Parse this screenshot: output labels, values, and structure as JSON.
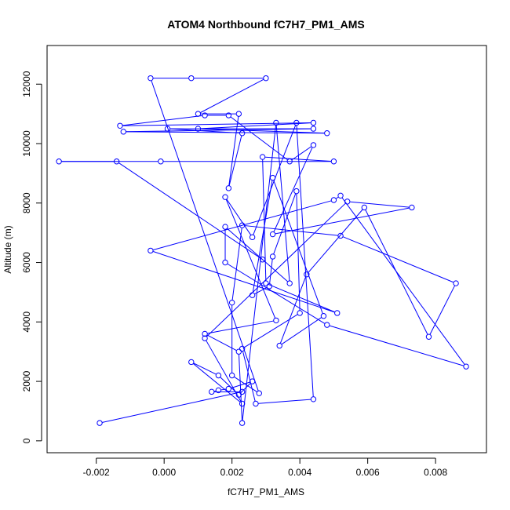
{
  "chart_data": {
    "type": "scatter",
    "title": "ATOM4 Northbound fC7H7_PM1_AMS",
    "xlabel": "fC7H7_PM1_AMS",
    "ylabel": "Altitude (m)",
    "xlim": [
      -0.00345,
      0.0095
    ],
    "ylim": [
      -400,
      13300
    ],
    "x_ticks": [
      -0.002,
      0.0,
      0.002,
      0.004,
      0.006,
      0.008
    ],
    "x_tick_labels": [
      "-0.002",
      "0.000",
      "0.002",
      "0.004",
      "0.006",
      "0.008"
    ],
    "y_ticks": [
      0,
      2000,
      4000,
      6000,
      8000,
      10000,
      12000
    ],
    "y_tick_labels": [
      "0",
      "2000",
      "4000",
      "6000",
      "8000",
      "10000",
      "12000"
    ],
    "grid": false,
    "connected": true,
    "series": [
      {
        "color": "#0000ff",
        "marker": "open-circle",
        "points": [
          [
            -0.0019,
            600
          ],
          [
            0.0023,
            1650
          ],
          [
            0.0014,
            1650
          ],
          [
            0.0016,
            1700
          ],
          [
            0.0019,
            1750
          ],
          [
            0.0026,
            2000
          ],
          [
            0.0022,
            1550
          ],
          [
            0.0016,
            2200
          ],
          [
            0.0008,
            2650
          ],
          [
            0.0023,
            1250
          ],
          [
            0.0012,
            3450
          ],
          [
            0.0054,
            8050
          ],
          [
            0.0073,
            7850
          ],
          [
            0.0032,
            6950
          ],
          [
            0.0044,
            9950
          ],
          [
            0.0037,
            9400
          ],
          [
            0.0019,
            10950
          ],
          [
            0.0012,
            10950
          ],
          [
            -0.0013,
            10600
          ],
          [
            0.0044,
            10700
          ],
          [
            0.001,
            10500
          ],
          [
            0.0048,
            10350
          ],
          [
            -0.0012,
            10400
          ],
          [
            0.0044,
            10500
          ],
          [
            0.0001,
            10500
          ],
          [
            0.0023,
            10350
          ],
          [
            0.0019,
            8500
          ],
          [
            0.0022,
            11000
          ],
          [
            0.001,
            11000
          ],
          [
            0.003,
            12200
          ],
          [
            0.0008,
            12200
          ],
          [
            -0.0004,
            12200
          ],
          [
            0.0028,
            1600
          ],
          [
            0.002,
            2200
          ],
          [
            0.002,
            4650
          ],
          [
            0.0023,
            7250
          ],
          [
            0.0052,
            6900
          ],
          [
            0.0086,
            5300
          ],
          [
            0.0078,
            3500
          ],
          [
            0.0059,
            7850
          ],
          [
            0.0042,
            5600
          ],
          [
            0.0034,
            3200
          ],
          [
            0.0047,
            4200
          ],
          [
            0.0032,
            8850
          ],
          [
            0.0026,
            4900
          ],
          [
            0.0031,
            5200
          ],
          [
            0.0032,
            6200
          ],
          [
            0.0039,
            8400
          ],
          [
            0.004,
            4300
          ],
          [
            0.0023,
            3100
          ],
          [
            0.0027,
            1250
          ],
          [
            0.0044,
            1400
          ],
          [
            0.0039,
            10700
          ],
          [
            0.0026,
            6850
          ],
          [
            0.0018,
            8200
          ],
          [
            0.0033,
            4050
          ],
          [
            0.0012,
            3600
          ],
          [
            0.0022,
            3000
          ],
          [
            0.0023,
            600
          ],
          [
            0.0033,
            10700
          ],
          [
            0.0037,
            5300
          ],
          [
            0.0018,
            7200
          ],
          [
            0.0018,
            6000
          ],
          [
            0.0048,
            3900
          ],
          [
            0.0089,
            2500
          ],
          [
            0.0052,
            8250
          ],
          [
            0.005,
            8100
          ],
          [
            -0.0004,
            6400
          ],
          [
            0.0051,
            4300
          ],
          [
            0.003,
            5300
          ],
          [
            0.0029,
            9550
          ],
          [
            0.005,
            9400
          ],
          [
            -0.0001,
            9400
          ],
          [
            -0.0031,
            9400
          ],
          [
            -0.0014,
            9400
          ],
          [
            0.0029,
            6100
          ]
        ]
      }
    ]
  }
}
